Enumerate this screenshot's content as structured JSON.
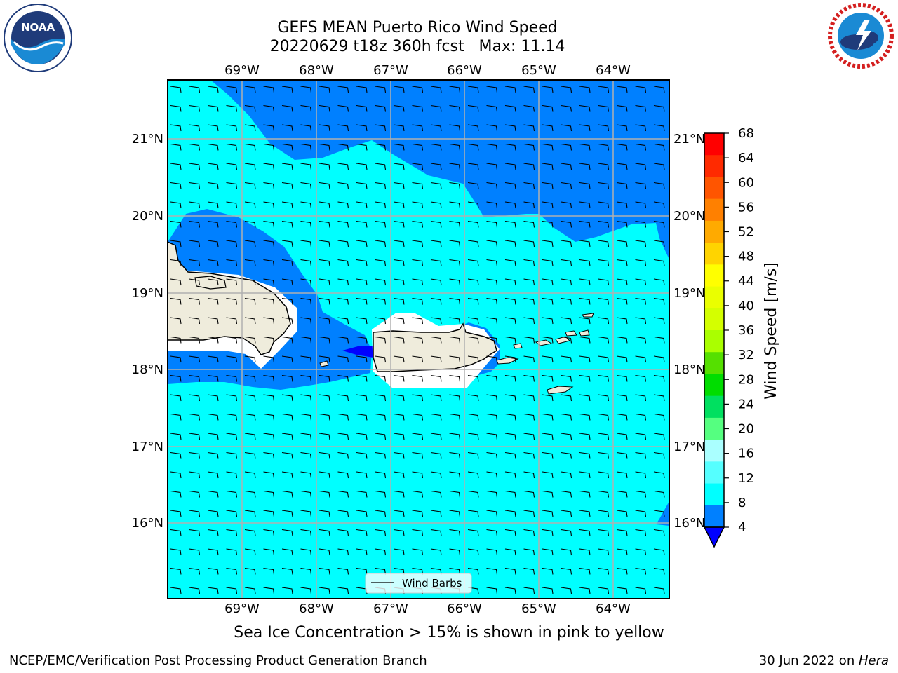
{
  "title": {
    "line1": "GEFS MEAN Puerto Rico Wind Speed",
    "line2": "20220629 t18z 360h fcst   Max: 11.14"
  },
  "logos": {
    "left": {
      "icon": "noaa-logo-icon",
      "text": "NOAA",
      "ring_text": "NATIONAL OCEANIC AND ATMOSPHERIC ADMINISTRATION · U.S. DEPARTMENT OF COMMERCE"
    },
    "right": {
      "icon": "nws-logo-icon",
      "ring_text": "NATIONAL WEATHER SERVICE"
    }
  },
  "map": {
    "lon_labels": [
      "69°W",
      "68°W",
      "67°W",
      "66°W",
      "65°W",
      "64°W"
    ],
    "lat_labels": [
      "21°N",
      "20°N",
      "19°N",
      "18°N",
      "17°N",
      "16°N"
    ],
    "legend_label": "Wind Barbs",
    "colors": {
      "ocean_8_12": "#00ffff",
      "ocean_4_8": "#0080ff",
      "ocean_lt4": "#0000ff",
      "land": "#efecdc",
      "grid": "#b0b0b0"
    }
  },
  "colorbar": {
    "label": "Wind Speed [m/s]",
    "ticks": [
      "68",
      "64",
      "60",
      "56",
      "52",
      "48",
      "44",
      "40",
      "36",
      "32",
      "28",
      "24",
      "20",
      "16",
      "12",
      "8",
      "4"
    ],
    "colors_top_to_bottom": [
      "#ff0000",
      "#ff2a00",
      "#ff5500",
      "#ff8000",
      "#ffaa00",
      "#ffd400",
      "#ffff00",
      "#eaff00",
      "#d4ff00",
      "#aaff00",
      "#55e000",
      "#00dd00",
      "#00e060",
      "#55ff80",
      "#aaffff",
      "#55ffff",
      "#00ffff",
      "#0080ff"
    ],
    "under_color": "#0000ff"
  },
  "subtitle": "Sea Ice Concentration > 15% is shown in pink to yellow",
  "footer": {
    "left": "NCEP/EMC/Verification Post Processing Product Generation Branch",
    "right_date": "30 Jun 2022 on ",
    "right_host": "Hera"
  }
}
